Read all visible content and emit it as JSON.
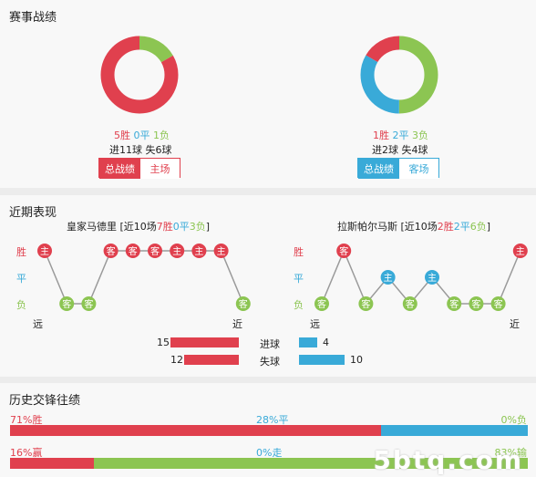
{
  "colors": {
    "win": "#e0404e",
    "draw": "#39aad8",
    "loss": "#8cc552",
    "grey": "#9a9a9a"
  },
  "record": {
    "title": "赛事战绩",
    "left": {
      "win": "5胜",
      "draw": "0平",
      "loss": "1负",
      "goals": "进11球  失6球",
      "donut": {
        "win": 5,
        "draw": 0,
        "loss": 1
      },
      "tab_active": "总战绩",
      "tab_other": "主场"
    },
    "right": {
      "win": "1胜",
      "draw": "2平",
      "loss": "3负",
      "goals": "进2球  失4球",
      "donut": {
        "win": 1,
        "draw": 2,
        "loss": 3
      },
      "tab_active": "总战绩",
      "tab_other": "客场"
    }
  },
  "recent": {
    "title": "近期表现",
    "axis": {
      "win": "胜",
      "draw": "平",
      "loss": "负",
      "far": "远",
      "near": "近"
    },
    "left": {
      "team": "皇家马德里",
      "summary_pre": "[近10场",
      "w": "7胜",
      "d": "0平",
      "l": "3负",
      "summary_post": "]",
      "matches": [
        {
          "r": "W",
          "v": "主"
        },
        {
          "r": "L",
          "v": "客"
        },
        {
          "r": "L",
          "v": "客"
        },
        {
          "r": "W",
          "v": "客"
        },
        {
          "r": "W",
          "v": "客"
        },
        {
          "r": "W",
          "v": "客"
        },
        {
          "r": "W",
          "v": "主"
        },
        {
          "r": "W",
          "v": "主"
        },
        {
          "r": "W",
          "v": "主"
        },
        {
          "r": "L",
          "v": "客"
        }
      ]
    },
    "right": {
      "team": "拉斯帕尔马斯",
      "summary_pre": "[近10场",
      "w": "2胜",
      "d": "2平",
      "l": "6负",
      "summary_post": "]",
      "matches": [
        {
          "r": "L",
          "v": "客"
        },
        {
          "r": "W",
          "v": "客"
        },
        {
          "r": "L",
          "v": "客"
        },
        {
          "r": "D",
          "v": "主"
        },
        {
          "r": "L",
          "v": "客"
        },
        {
          "r": "D",
          "v": "主"
        },
        {
          "r": "L",
          "v": "客"
        },
        {
          "r": "L",
          "v": "客"
        },
        {
          "r": "L",
          "v": "客"
        },
        {
          "r": "W",
          "v": "主"
        }
      ]
    },
    "stats": {
      "scored_label": "进球",
      "conceded_label": "失球",
      "left_scored": 15,
      "left_conceded": 12,
      "right_scored": 4,
      "right_conceded": 10
    }
  },
  "history": {
    "title": "历史交锋往绩",
    "row1": {
      "a": "71%胜",
      "b": "28%平",
      "c": "0%负",
      "av": 71,
      "bv": 28,
      "cv": 0
    },
    "row2": {
      "a": "16%赢",
      "b": "0%走",
      "c": "83%输",
      "av": 16,
      "bv": 0,
      "cv": 83
    }
  },
  "watermark": "5btq.com"
}
